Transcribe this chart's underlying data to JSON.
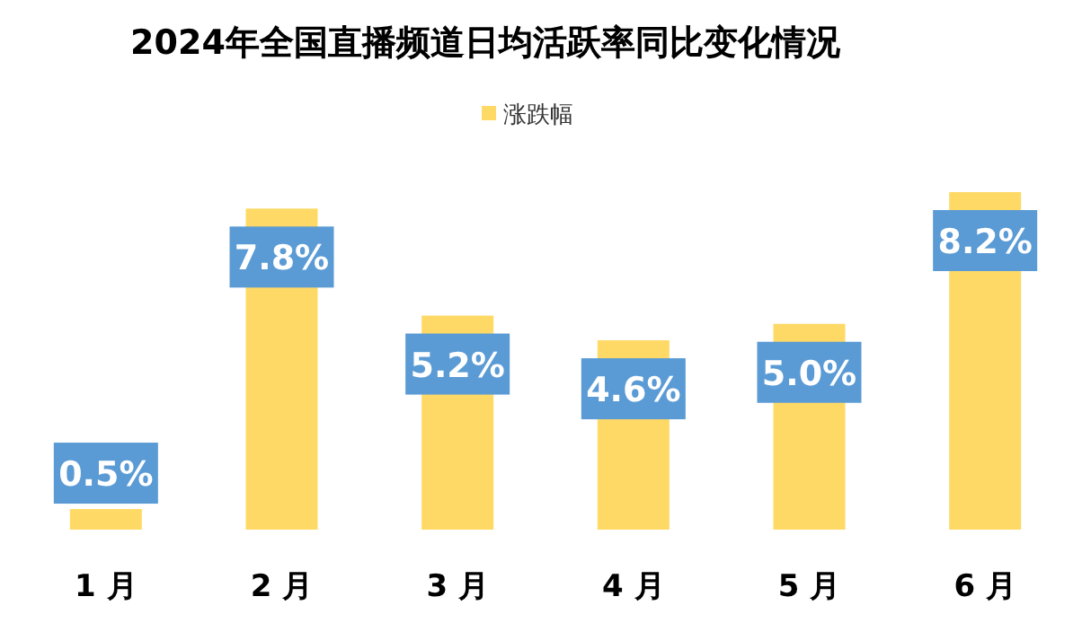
{
  "chart_data": {
    "type": "bar",
    "title": "2024年全国直播频道日均活跃率同比变化情况",
    "categories": [
      "1 月",
      "2 月",
      "3 月",
      "4 月",
      "5 月",
      "6 月"
    ],
    "series": [
      {
        "name": "涨跌幅",
        "color": "#ffd966",
        "values": [
          0.5,
          7.8,
          5.2,
          4.6,
          5.0,
          8.2
        ],
        "value_labels": [
          "0.5%",
          "7.8%",
          "5.2%",
          "4.6%",
          "5.0%",
          "8.2%"
        ]
      }
    ],
    "legend": "top",
    "grid": false
  }
}
